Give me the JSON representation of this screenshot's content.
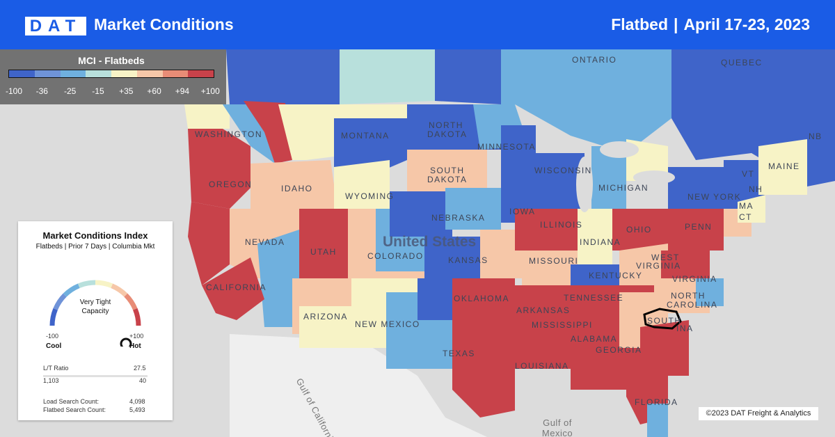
{
  "header": {
    "logo": "DAT",
    "title": "Market Conditions",
    "equipment": "Flatbed",
    "separator": "|",
    "date_range": "April 17-23, 2023"
  },
  "legend": {
    "title": "MCI - Flatbeds",
    "ticks": [
      "-100",
      "-36",
      "-25",
      "-15",
      "+35",
      "+60",
      "+94",
      "+100"
    ],
    "colors": [
      "#3f64c9",
      "#6f93d8",
      "#6fb0de",
      "#b8e0dc",
      "#f7f3c6",
      "#f6c7a8",
      "#e88c76",
      "#c8424a"
    ]
  },
  "map": {
    "labels": {
      "ontario": "ONTARIO",
      "quebec": "QUEBEC",
      "nb": "NB",
      "washington": "WASHINGTON",
      "montana": "MONTANA",
      "north_dakota_1": "NORTH",
      "north_dakota_2": "DAKOTA",
      "minnesota": "MINNESOTA",
      "south_dakota_1": "SOUTH",
      "south_dakota_2": "DAKOTA",
      "wisconsin": "WISCONSIN",
      "michigan": "MICHIGAN",
      "oregon": "OREGON",
      "idaho": "IDAHO",
      "wyoming": "WYOMING",
      "iowa": "IOWA",
      "new_york": "NEW YORK",
      "vermont": "VT",
      "nh": "NH",
      "maine": "MAINE",
      "ma": "MA",
      "ct": "CT",
      "nevada": "NEVADA",
      "utah": "UTAH",
      "colorado": "COLORADO",
      "nebraska": "NEBRASKA",
      "illinois": "ILLINOIS",
      "indiana": "INDIANA",
      "ohio": "OHIO",
      "penn": "PENN",
      "united_states": "United States",
      "kansas": "KANSAS",
      "missouri": "MISSOURI",
      "west_virginia_1": "WEST",
      "west_virginia_2": "VIRGINIA",
      "virginia": "VIRGINIA",
      "kentucky": "KENTUCKY",
      "california": "CALIFORNIA",
      "arizona": "ARIZONA",
      "new_mexico": "NEW MEXICO",
      "oklahoma": "OKLAHOMA",
      "arkansas": "ARKANSAS",
      "tennessee": "TENNESSEE",
      "north_carolina_1": "NORTH",
      "north_carolina_2": "CAROLINA",
      "south_carolina": "SOUTH",
      "south_carolina_2": "INA",
      "texas": "TEXAS",
      "mississippi": "MISSISSIPPI",
      "alabama": "ALABAMA",
      "georgia": "GEORGIA",
      "louisiana": "LOUISIANA",
      "florida": "FLORIDA",
      "gulf_california_1": "Gulf of",
      "gulf_california_2": "California",
      "gulf_mexico_1": "Gulf of",
      "gulf_mexico_2": "Mexico"
    }
  },
  "mci_card": {
    "title": "Market Conditions Index",
    "subtitle": "Flatbeds | Prior 7 Days | Columbia Mkt",
    "gauge_status_1": "Very Tight",
    "gauge_status_2": "Capacity",
    "gauge_value": 100,
    "min_label": "-100",
    "max_label": "+100",
    "cool_label": "Cool",
    "hot_label": "Hot",
    "lt_ratio_label": "L/T Ratio",
    "lt_ratio_value": "27.5",
    "lt_loads": "1,103",
    "lt_trucks": "40",
    "load_search_label": "Load Search Count:",
    "load_search_value": "4,098",
    "flatbed_search_label": "Flatbed Search Count:",
    "flatbed_search_value": "5,493"
  },
  "copyright": "©2023 DAT Freight & Analytics"
}
